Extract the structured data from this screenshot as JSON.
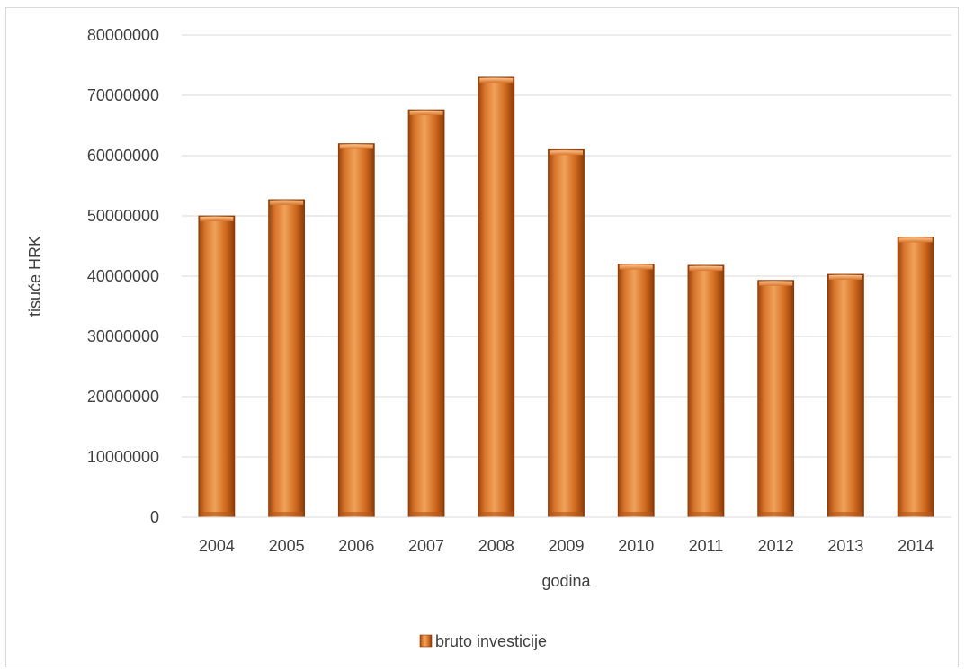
{
  "chart_data": {
    "type": "bar",
    "categories": [
      "2004",
      "2005",
      "2006",
      "2007",
      "2008",
      "2009",
      "2010",
      "2011",
      "2012",
      "2013",
      "2014"
    ],
    "series": [
      {
        "name": "bruto investicije",
        "values": [
          50000000,
          52700000,
          62000000,
          67600000,
          73000000,
          61000000,
          42000000,
          41800000,
          39300000,
          40300000,
          46500000
        ],
        "color": "#c55a11",
        "highlight_color": "#f4a153"
      }
    ],
    "xlabel": "godina",
    "ylabel": "tisuće HRK",
    "ylim": [
      0,
      80000000
    ],
    "yticks": [
      "0",
      "10000000",
      "20000000",
      "30000000",
      "40000000",
      "50000000",
      "60000000",
      "70000000",
      "80000000"
    ],
    "grid": true,
    "legend_position": "bottom"
  }
}
